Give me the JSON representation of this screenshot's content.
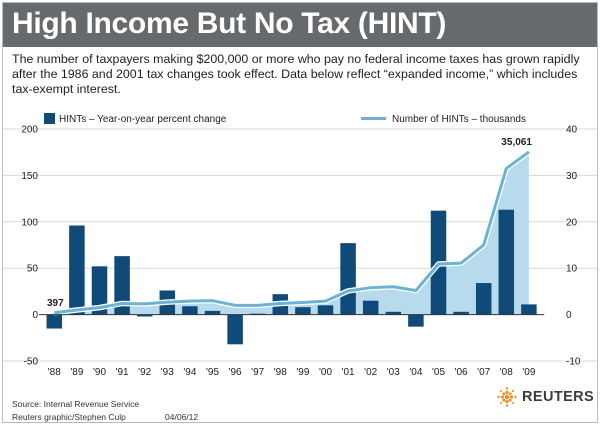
{
  "title": "High Income But No Tax (HINT)",
  "subtitle": "The number of taxpayers making $200,000 or more who pay no federal income taxes has grown rapidly after the 1986 and 2001  tax changes took effect. Data below reflect “expanded income,” which includes tax-exempt interest.",
  "source": "Source: Internal Revenue Service",
  "credit": "Reuters graphic/Stephen Culp",
  "date": "04/06/12",
  "logo": {
    "text": "REUTERS",
    "icon": "reuters-dot-logo-icon"
  },
  "colors": {
    "header": "#676a6d",
    "bar": "#0f4a78",
    "line": "#6bb3d4",
    "area": "#b7daec"
  },
  "chart_data": {
    "type": "bar",
    "categories": [
      "'88",
      "'89",
      "'90",
      "'91",
      "'92",
      "'93",
      "'94",
      "'95",
      "'96",
      "'97",
      "'98",
      "'99",
      "'00",
      "'01",
      "'02",
      "'03",
      "'04",
      "'05",
      "'06",
      "'07",
      "'08",
      "'09"
    ],
    "series": [
      {
        "name": "HINTs – Year-on-year percent change",
        "type": "bar",
        "axis": "left",
        "values": [
          -15,
          96,
          52,
          63,
          -2,
          26,
          9,
          4,
          -32,
          1,
          22,
          8,
          10,
          77,
          15,
          3,
          -13,
          112,
          3,
          34,
          113,
          11
        ]
      },
      {
        "name": "Number of HINTs – thousands",
        "type": "area-line",
        "axis": "right",
        "values": [
          0.397,
          1.0,
          1.5,
          2.4,
          2.3,
          2.7,
          2.9,
          3.0,
          2.0,
          2.0,
          2.4,
          2.6,
          2.9,
          5.1,
          5.8,
          6.0,
          5.2,
          10.9,
          11.1,
          15.0,
          31.5,
          35.061
        ]
      }
    ],
    "left_axis": {
      "ylim": [
        -50,
        200
      ],
      "ticks": [
        "-50",
        "0",
        "50",
        "100",
        "150",
        "200"
      ]
    },
    "right_axis": {
      "ylim": [
        -10,
        40
      ],
      "ticks": [
        "-10",
        "0",
        "10",
        "20",
        "30",
        "40"
      ]
    },
    "annotations": [
      {
        "text": "397",
        "category": "'88",
        "series": 1
      },
      {
        "text": "35,061",
        "category": "'09",
        "series": 1
      }
    ],
    "grid": "horizontal",
    "legend": "top"
  }
}
